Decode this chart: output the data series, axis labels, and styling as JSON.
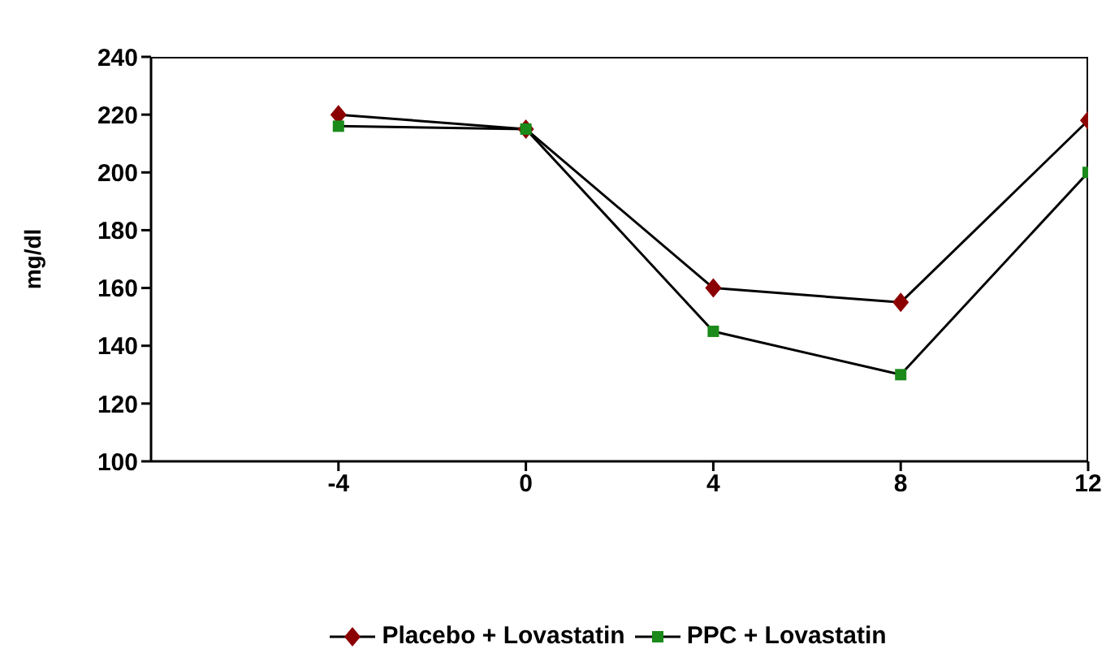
{
  "chart_data": {
    "type": "line",
    "ylabel": "mg/dl",
    "x": [
      -4,
      0,
      4,
      8,
      12
    ],
    "xlim": [
      -8,
      12
    ],
    "xticks": [
      -4,
      0,
      4,
      8,
      12
    ],
    "ylim": [
      100,
      240
    ],
    "yticks": [
      100,
      120,
      140,
      160,
      180,
      200,
      220,
      240
    ],
    "grid": false,
    "legend": "bottom",
    "series": [
      {
        "name": "Placebo + Lovastatin",
        "color": "#8b0000",
        "marker": "diamond",
        "values": [
          220,
          215,
          160,
          155,
          218
        ]
      },
      {
        "name": "PPC + Lovastatin",
        "color": "#1a8a1a",
        "marker": "square",
        "values": [
          216,
          215,
          145,
          130,
          200
        ]
      }
    ]
  }
}
